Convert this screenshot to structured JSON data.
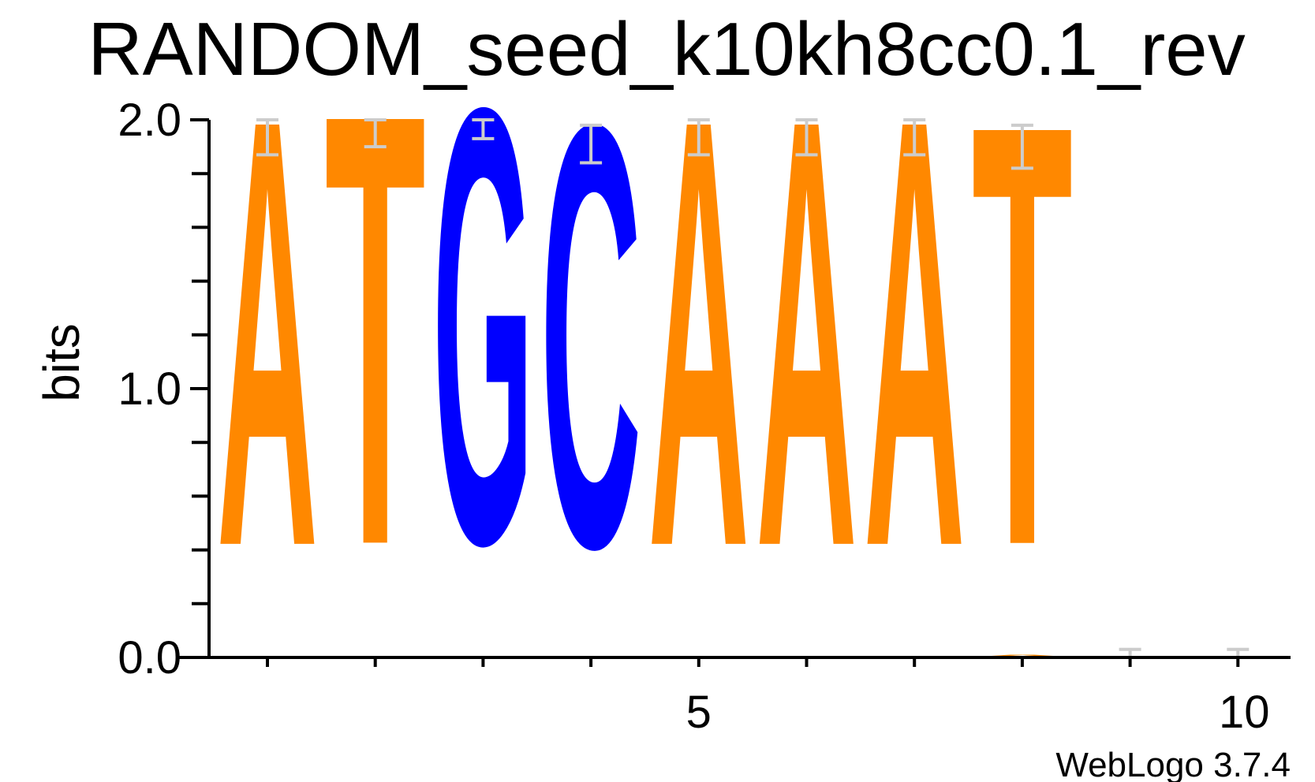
{
  "chart_data": {
    "type": "sequence_logo",
    "title": "RANDOM_seed_k10kh8cc0.1_rev",
    "ylabel": "bits",
    "ylim": [
      0,
      2
    ],
    "y_ticks": [
      "0.0",
      "1.0",
      "2.0"
    ],
    "x_ticks": [
      "5",
      "10"
    ],
    "credit": "WebLogo 3.7.4",
    "colors": {
      "A": "#ff8800",
      "T": "#ff8800",
      "G": "#0000ff",
      "C": "#0000ff",
      "errorbar": "#cccccc"
    },
    "positions": [
      {
        "pos": 1,
        "stack": [
          {
            "letter": "A",
            "bits": 1.93
          }
        ],
        "error": [
          1.87,
          2.0
        ]
      },
      {
        "pos": 2,
        "stack": [
          {
            "letter": "T",
            "bits": 1.95
          }
        ],
        "error": [
          1.9,
          2.0
        ]
      },
      {
        "pos": 3,
        "stack": [
          {
            "letter": "G",
            "bits": 1.97
          }
        ],
        "error": [
          1.93,
          2.0
        ]
      },
      {
        "pos": 4,
        "stack": [
          {
            "letter": "C",
            "bits": 1.91
          }
        ],
        "error": [
          1.84,
          1.98
        ]
      },
      {
        "pos": 5,
        "stack": [
          {
            "letter": "A",
            "bits": 1.93
          }
        ],
        "error": [
          1.87,
          2.0
        ]
      },
      {
        "pos": 6,
        "stack": [
          {
            "letter": "A",
            "bits": 1.93
          }
        ],
        "error": [
          1.87,
          2.0
        ]
      },
      {
        "pos": 7,
        "stack": [
          {
            "letter": "A",
            "bits": 1.93
          }
        ],
        "error": [
          1.87,
          2.0
        ]
      },
      {
        "pos": 8,
        "stack": [
          {
            "letter": "A",
            "bits": 0.01
          },
          {
            "letter": "T",
            "bits": 1.9
          }
        ],
        "error": [
          1.82,
          1.98
        ]
      },
      {
        "pos": 9,
        "stack": [],
        "error": [
          0.0,
          0.03
        ]
      },
      {
        "pos": 10,
        "stack": [],
        "error": [
          0.0,
          0.03
        ]
      }
    ]
  }
}
